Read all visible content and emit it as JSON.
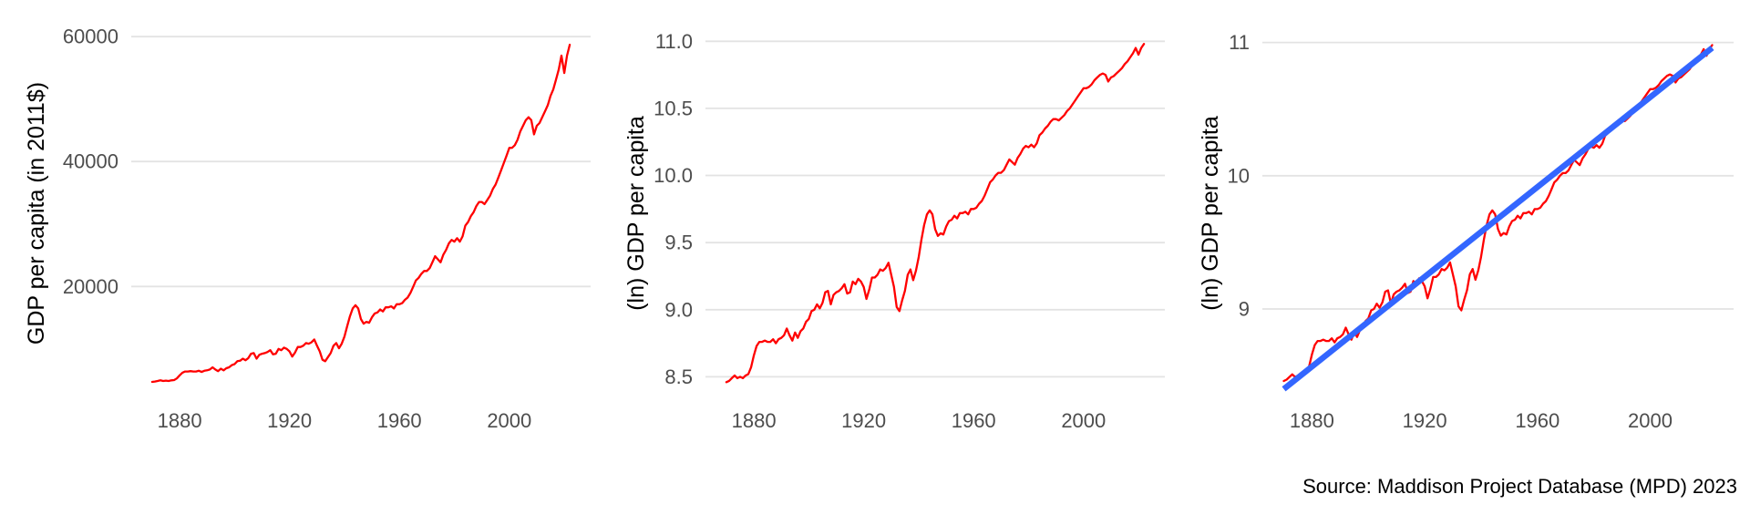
{
  "source_caption": "Source: Maddison Project Database (MPD) 2023",
  "colors": {
    "background": "#FFFFFF",
    "line_red": "#FF0000",
    "trend_blue": "#3366FF",
    "gridline": "#E3E3E3",
    "tick_text": "#4D4D4D",
    "axis_title_text": "#000000"
  },
  "series": {
    "start_year": 1870,
    "end_year": 2022,
    "unit": "ln of GDP per capita in 2011$",
    "ln_gdp_per_capita": [
      8.46,
      8.47,
      8.49,
      8.51,
      8.49,
      8.5,
      8.49,
      8.51,
      8.52,
      8.57,
      8.66,
      8.73,
      8.76,
      8.76,
      8.77,
      8.76,
      8.76,
      8.78,
      8.75,
      8.78,
      8.79,
      8.81,
      8.86,
      8.81,
      8.77,
      8.83,
      8.79,
      8.84,
      8.86,
      8.91,
      8.93,
      8.99,
      9.0,
      9.04,
      9.01,
      9.05,
      9.13,
      9.14,
      9.04,
      9.11,
      9.13,
      9.14,
      9.16,
      9.19,
      9.12,
      9.13,
      9.21,
      9.19,
      9.23,
      9.21,
      9.17,
      9.08,
      9.15,
      9.24,
      9.24,
      9.26,
      9.3,
      9.29,
      9.31,
      9.35,
      9.26,
      9.17,
      9.02,
      8.99,
      9.07,
      9.14,
      9.26,
      9.3,
      9.22,
      9.29,
      9.39,
      9.52,
      9.63,
      9.71,
      9.74,
      9.71,
      9.6,
      9.55,
      9.57,
      9.56,
      9.62,
      9.66,
      9.67,
      9.7,
      9.68,
      9.72,
      9.72,
      9.73,
      9.71,
      9.75,
      9.75,
      9.76,
      9.79,
      9.81,
      9.85,
      9.9,
      9.95,
      9.97,
      10.0,
      10.02,
      10.02,
      10.04,
      10.08,
      10.12,
      10.1,
      10.08,
      10.13,
      10.16,
      10.2,
      10.22,
      10.21,
      10.23,
      10.21,
      10.24,
      10.3,
      10.32,
      10.35,
      10.37,
      10.4,
      10.42,
      10.42,
      10.41,
      10.43,
      10.45,
      10.48,
      10.5,
      10.53,
      10.56,
      10.59,
      10.62,
      10.65,
      10.65,
      10.66,
      10.68,
      10.71,
      10.73,
      10.75,
      10.76,
      10.75,
      10.7,
      10.73,
      10.74,
      10.76,
      10.78,
      10.8,
      10.83,
      10.85,
      10.88,
      10.91,
      10.95,
      10.9,
      10.95,
      10.98
    ]
  },
  "chart_data": [
    {
      "type": "line",
      "title": "",
      "xlabel": "",
      "ylabel": "GDP per capita (in 2011$)",
      "x_ticks": [
        1880,
        1920,
        1960,
        2000
      ],
      "x_tick_labels": [
        "1880",
        "1920",
        "1960",
        "2000"
      ],
      "y_ticks": [
        20000,
        40000,
        60000
      ],
      "y_tick_labels": [
        "20000",
        "40000",
        "60000"
      ],
      "xlim": [
        1862.4,
        2029.6
      ],
      "ylim": [
        2090,
        61190
      ],
      "series_ref": "ln_gdp_per_capita",
      "transform": "exp",
      "line_color": "#FF0000",
      "grid": "major-y-only",
      "legend": "none"
    },
    {
      "type": "line",
      "title": "",
      "xlabel": "",
      "ylabel": "(ln) GDP per capita",
      "x_ticks": [
        1880,
        1920,
        1960,
        2000
      ],
      "x_tick_labels": [
        "1880",
        "1920",
        "1960",
        "2000"
      ],
      "y_ticks": [
        8.5,
        9.0,
        9.5,
        10.0,
        10.5,
        11.0
      ],
      "y_tick_labels": [
        "8.5",
        "9.0",
        "9.5",
        "10.0",
        "10.5",
        "11.0"
      ],
      "xlim": [
        1862.4,
        2029.6
      ],
      "ylim": [
        8.34,
        11.09
      ],
      "series_ref": "ln_gdp_per_capita",
      "transform": "none",
      "line_color": "#FF0000",
      "grid": "major-y-only",
      "legend": "none"
    },
    {
      "type": "line",
      "title": "",
      "xlabel": "",
      "ylabel": "(ln) GDP per capita",
      "x_ticks": [
        1880,
        1920,
        1960,
        2000
      ],
      "x_tick_labels": [
        "1880",
        "1920",
        "1960",
        "2000"
      ],
      "y_ticks": [
        9,
        10,
        11
      ],
      "y_tick_labels": [
        "9",
        "10",
        "11"
      ],
      "xlim": [
        1862.4,
        2029.6
      ],
      "ylim": [
        8.33,
        11.1
      ],
      "series_ref": "ln_gdp_per_capita",
      "transform": "none",
      "line_color": "#FF0000",
      "grid": "major-y-only",
      "legend": "none",
      "trend_line": {
        "type": "linear-fit",
        "x": [
          1870,
          2022
        ],
        "y": [
          8.4,
          10.96
        ],
        "color": "#3366FF"
      }
    }
  ]
}
